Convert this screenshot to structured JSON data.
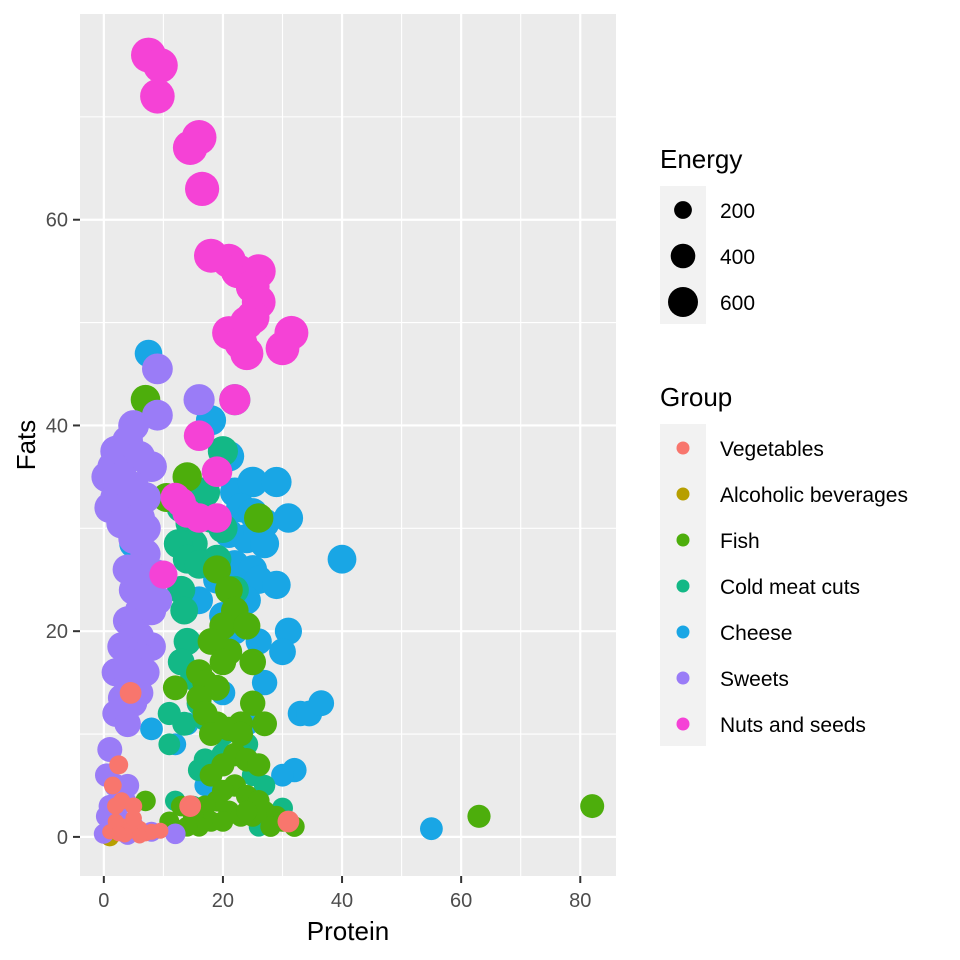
{
  "chart_data": {
    "type": "scatter",
    "xlabel": "Protein",
    "ylabel": "Fats",
    "xlim": [
      -4,
      86
    ],
    "ylim": [
      -3.8,
      80
    ],
    "x_ticks": [
      0,
      20,
      40,
      60,
      80
    ],
    "y_ticks": [
      0,
      20,
      40,
      60
    ],
    "grid": true,
    "legend_position": "right",
    "size_legend": {
      "title": "Energy",
      "entries": [
        {
          "label": "200",
          "value": 200
        },
        {
          "label": "400",
          "value": 400
        },
        {
          "label": "600",
          "value": 600
        }
      ]
    },
    "color_legend": {
      "title": "Group",
      "entries": [
        {
          "label": "Vegetables",
          "color": "#F8766D"
        },
        {
          "label": "Alcoholic beverages",
          "color": "#B79F00"
        },
        {
          "label": "Fish",
          "color": "#4DAE0C"
        },
        {
          "label": "Cold meat cuts",
          "color": "#13B886"
        },
        {
          "label": "Cheese",
          "color": "#19A6E5"
        },
        {
          "label": "Sweets",
          "color": "#9A7CF7"
        },
        {
          "label": "Nuts and seeds",
          "color": "#F542D6"
        }
      ]
    },
    "series": [
      {
        "name": "Alcoholic beverages",
        "points": [
          [
            0.5,
            0.2,
            50
          ],
          [
            0.8,
            0.1,
            80
          ],
          [
            1,
            0,
            120
          ]
        ]
      },
      {
        "name": "Cheese",
        "points": [
          [
            7.5,
            47,
            330
          ],
          [
            18,
            40.5,
            420
          ],
          [
            21,
            37,
            430
          ],
          [
            22,
            33.5,
            400
          ],
          [
            25,
            34.5,
            430
          ],
          [
            29,
            34.5,
            420
          ],
          [
            23,
            32,
            390
          ],
          [
            25,
            31.5,
            400
          ],
          [
            27,
            30.5,
            400
          ],
          [
            31,
            31,
            390
          ],
          [
            24,
            29,
            390
          ],
          [
            27,
            28.5,
            380
          ],
          [
            21,
            29.5,
            380
          ],
          [
            22,
            26.5,
            360
          ],
          [
            25,
            26,
            370
          ],
          [
            26,
            25,
            360
          ],
          [
            29,
            24.5,
            360
          ],
          [
            24,
            23,
            350
          ],
          [
            16,
            23,
            340
          ],
          [
            20,
            21.5,
            330
          ],
          [
            31,
            20,
            320
          ],
          [
            30,
            18,
            310
          ],
          [
            40,
            27,
            370
          ],
          [
            33,
            12,
            270
          ],
          [
            34.5,
            12,
            280
          ],
          [
            36.5,
            13,
            280
          ],
          [
            32,
            6.5,
            240
          ],
          [
            55,
            0.8,
            200
          ],
          [
            5,
            28.5,
            370
          ],
          [
            8,
            10.5,
            200
          ],
          [
            12,
            9,
            180
          ],
          [
            19,
            25,
            340
          ],
          [
            22,
            20,
            300
          ],
          [
            26,
            19,
            290
          ],
          [
            14,
            11,
            200
          ],
          [
            17,
            5,
            170
          ],
          [
            30,
            6,
            200
          ],
          [
            24,
            11,
            230
          ],
          [
            20,
            14,
            250
          ],
          [
            27,
            15,
            270
          ]
        ]
      },
      {
        "name": "Cold meat cuts",
        "points": [
          [
            22,
            42.5,
            450
          ],
          [
            20,
            37.5,
            420
          ],
          [
            17,
            33.5,
            410
          ],
          [
            18,
            31,
            400
          ],
          [
            13,
            32,
            390
          ],
          [
            14.5,
            30.5,
            390
          ],
          [
            15,
            28.5,
            380
          ],
          [
            12.5,
            28.5,
            380
          ],
          [
            14,
            27,
            370
          ],
          [
            16,
            26.5,
            370
          ],
          [
            13,
            24,
            350
          ],
          [
            13.5,
            22,
            340
          ],
          [
            14,
            19,
            320
          ],
          [
            13,
            17,
            310
          ],
          [
            15,
            15.5,
            290
          ],
          [
            16,
            13,
            260
          ],
          [
            17,
            11.5,
            240
          ],
          [
            13.5,
            11,
            230
          ],
          [
            17,
            7.5,
            200
          ],
          [
            18,
            6,
            190
          ],
          [
            20,
            10,
            220
          ],
          [
            20,
            8,
            210
          ],
          [
            16,
            6.5,
            190
          ],
          [
            11,
            12,
            210
          ],
          [
            11,
            9,
            180
          ],
          [
            24,
            9,
            200
          ],
          [
            25,
            6,
            180
          ],
          [
            27,
            5,
            170
          ],
          [
            19,
            27,
            370
          ],
          [
            20,
            30,
            390
          ],
          [
            22,
            24,
            350
          ],
          [
            12,
            3.5,
            150
          ],
          [
            15,
            3,
            150
          ],
          [
            30,
            2.8,
            160
          ],
          [
            26,
            1,
            140
          ]
        ]
      },
      {
        "name": "Fish",
        "points": [
          [
            7,
            42.5,
            400
          ],
          [
            14,
            35,
            390
          ],
          [
            10.5,
            33,
            380
          ],
          [
            19,
            26,
            350
          ],
          [
            21,
            24,
            340
          ],
          [
            22,
            22,
            330
          ],
          [
            20,
            20.5,
            320
          ],
          [
            24,
            20.5,
            320
          ],
          [
            18,
            19,
            310
          ],
          [
            21,
            18,
            300
          ],
          [
            20,
            17,
            300
          ],
          [
            25,
            17,
            300
          ],
          [
            16,
            16,
            290
          ],
          [
            17,
            15,
            280
          ],
          [
            19,
            14.5,
            280
          ],
          [
            25,
            13,
            270
          ],
          [
            16,
            13.5,
            270
          ],
          [
            17,
            12,
            260
          ],
          [
            19,
            11,
            250
          ],
          [
            23,
            11,
            250
          ],
          [
            27,
            11,
            250
          ],
          [
            21,
            10.5,
            240
          ],
          [
            23,
            10,
            240
          ],
          [
            12,
            14.5,
            250
          ],
          [
            18,
            10,
            230
          ],
          [
            22,
            8,
            220
          ],
          [
            24,
            7.5,
            220
          ],
          [
            26,
            7,
            210
          ],
          [
            20,
            7,
            210
          ],
          [
            18,
            6,
            200
          ],
          [
            22,
            5,
            190
          ],
          [
            24,
            4,
            180
          ],
          [
            26,
            3.5,
            180
          ],
          [
            20,
            4.5,
            180
          ],
          [
            19,
            3.5,
            170
          ],
          [
            17,
            3,
            170
          ],
          [
            21,
            2.5,
            170
          ],
          [
            23,
            2,
            160
          ],
          [
            25,
            2,
            160
          ],
          [
            27,
            2.5,
            160
          ],
          [
            29,
            2,
            160
          ],
          [
            30,
            1.5,
            150
          ],
          [
            32,
            1,
            150
          ],
          [
            18,
            1.5,
            150
          ],
          [
            20,
            1.5,
            150
          ],
          [
            15,
            2,
            150
          ],
          [
            16,
            1,
            140
          ],
          [
            14,
            1,
            140
          ],
          [
            12,
            0.8,
            130
          ],
          [
            7,
            3.5,
            150
          ],
          [
            13,
            3,
            150
          ],
          [
            26,
            31,
            390
          ],
          [
            63,
            2,
            210
          ],
          [
            82,
            3,
            230
          ],
          [
            28,
            1,
            150
          ],
          [
            11,
            1.5,
            140
          ],
          [
            24,
            2.5,
            160
          ]
        ]
      },
      {
        "name": "Sweets",
        "points": [
          [
            9,
            45.5,
            440
          ],
          [
            16,
            42.5,
            450
          ],
          [
            9,
            41,
            440
          ],
          [
            5,
            40,
            440
          ],
          [
            4,
            38.5,
            440
          ],
          [
            2,
            37.5,
            440
          ],
          [
            6,
            37,
            440
          ],
          [
            1.5,
            36,
            440
          ],
          [
            3,
            35,
            440
          ],
          [
            8,
            36,
            440
          ],
          [
            0.5,
            35,
            440
          ],
          [
            5,
            34,
            440
          ],
          [
            2,
            33,
            440
          ],
          [
            7,
            33,
            440
          ],
          [
            4,
            32,
            440
          ],
          [
            1,
            32,
            440
          ],
          [
            6,
            31,
            440
          ],
          [
            3,
            30.5,
            440
          ],
          [
            7,
            30,
            430
          ],
          [
            5,
            29,
            430
          ],
          [
            7,
            27.5,
            420
          ],
          [
            4,
            26,
            410
          ],
          [
            9,
            25.5,
            410
          ],
          [
            6,
            25,
            410
          ],
          [
            5,
            24,
            400
          ],
          [
            7,
            23.5,
            400
          ],
          [
            9,
            23,
            400
          ],
          [
            6,
            22,
            390
          ],
          [
            8,
            22,
            390
          ],
          [
            4,
            21,
            390
          ],
          [
            5,
            20,
            380
          ],
          [
            6,
            19.5,
            380
          ],
          [
            3,
            18.5,
            370
          ],
          [
            8,
            18.5,
            370
          ],
          [
            6,
            17.5,
            370
          ],
          [
            4,
            17,
            360
          ],
          [
            2,
            16,
            350
          ],
          [
            7,
            16,
            350
          ],
          [
            4,
            15,
            340
          ],
          [
            6,
            14,
            330
          ],
          [
            3,
            13.5,
            330
          ],
          [
            5,
            13,
            320
          ],
          [
            2,
            12,
            310
          ],
          [
            4,
            11,
            300
          ],
          [
            1,
            8.5,
            260
          ],
          [
            0.5,
            6,
            220
          ],
          [
            2,
            5,
            210
          ],
          [
            4,
            5,
            210
          ],
          [
            3.5,
            3.5,
            200
          ],
          [
            1,
            3,
            190
          ],
          [
            0.5,
            2,
            180
          ],
          [
            2,
            2.5,
            180
          ],
          [
            3,
            1.5,
            170
          ],
          [
            5,
            1,
            160
          ],
          [
            1,
            1,
            160
          ],
          [
            2,
            0.8,
            150
          ],
          [
            0,
            0.3,
            140
          ],
          [
            4,
            0.2,
            140
          ],
          [
            8,
            0.5,
            140
          ],
          [
            12,
            0.3,
            150
          ]
        ]
      },
      {
        "name": "Nuts and seeds",
        "points": [
          [
            7.5,
            76,
            600
          ],
          [
            9.5,
            75,
            590
          ],
          [
            9,
            72,
            580
          ],
          [
            16,
            68,
            590
          ],
          [
            14.5,
            67,
            580
          ],
          [
            16.5,
            63,
            570
          ],
          [
            18,
            56.5,
            560
          ],
          [
            21,
            56,
            570
          ],
          [
            22.5,
            55,
            560
          ],
          [
            26,
            55,
            560
          ],
          [
            25,
            53.5,
            550
          ],
          [
            26,
            52,
            550
          ],
          [
            25,
            50.5,
            540
          ],
          [
            24,
            50,
            540
          ],
          [
            21,
            49,
            540
          ],
          [
            31.5,
            49,
            560
          ],
          [
            23,
            48,
            530
          ],
          [
            24,
            47,
            530
          ],
          [
            30,
            47.5,
            550
          ],
          [
            22,
            42.5,
            450
          ],
          [
            16,
            39,
            430
          ],
          [
            19,
            35.5,
            430
          ],
          [
            13,
            32.5,
            400
          ],
          [
            14,
            31.5,
            400
          ],
          [
            16,
            31,
            400
          ],
          [
            19,
            31,
            400
          ],
          [
            10,
            25.5,
            350
          ],
          [
            12,
            33,
            400
          ]
        ]
      },
      {
        "name": "Vegetables",
        "points": [
          [
            4.5,
            14,
            180
          ],
          [
            2.5,
            7,
            120
          ],
          [
            1.5,
            5,
            100
          ],
          [
            3,
            3.5,
            90
          ],
          [
            2,
            3,
            90
          ],
          [
            5,
            3,
            90
          ],
          [
            14.5,
            3,
            180
          ],
          [
            31,
            1.5,
            180
          ],
          [
            3,
            1,
            80
          ],
          [
            4,
            0.5,
            70
          ],
          [
            6,
            0.8,
            70
          ],
          [
            7,
            0.3,
            60
          ],
          [
            1,
            0.5,
            60
          ],
          [
            2,
            1.5,
            70
          ],
          [
            5,
            1.8,
            80
          ],
          [
            3.5,
            0.2,
            60
          ],
          [
            8,
            0.5,
            70
          ],
          [
            6,
            0.1,
            60
          ],
          [
            9.5,
            0.6,
            70
          ],
          [
            2.5,
            0.3,
            60
          ]
        ]
      }
    ]
  }
}
